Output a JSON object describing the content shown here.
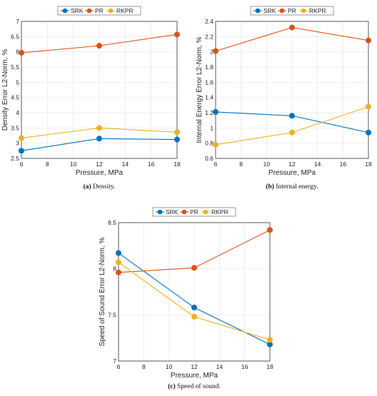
{
  "colors": {
    "SRK": "#0072BD",
    "PR": "#D95319",
    "RKPR": "#EDB120",
    "grid": "#e6e6e6",
    "axis": "#333333"
  },
  "chart_data": [
    {
      "type": "line",
      "id": "a",
      "caption_tag": "(a)",
      "caption_text": "Density.",
      "xlabel": "Pressure, MPa",
      "ylabel": "Density Error L2-Norm, %",
      "x": [
        6,
        12,
        18
      ],
      "xlim": [
        6,
        18
      ],
      "ylim": [
        2.5,
        7
      ],
      "xticks": [
        "6",
        "8",
        "10",
        "12",
        "14",
        "16",
        "18"
      ],
      "yticks": [
        "2.5",
        "3",
        "3.5",
        "4",
        "4.5",
        "5",
        "5.5",
        "6",
        "6.5",
        "7"
      ],
      "grid": true,
      "legend": "top-outside",
      "series": [
        {
          "name": "SRK",
          "values": [
            2.75,
            3.15,
            3.12
          ]
        },
        {
          "name": "PR",
          "values": [
            5.97,
            6.2,
            6.57
          ]
        },
        {
          "name": "RKPR",
          "values": [
            3.17,
            3.5,
            3.36
          ]
        }
      ]
    },
    {
      "type": "line",
      "id": "b",
      "caption_tag": "(b)",
      "caption_text": "Internal energy.",
      "xlabel": "Pressure, MPa",
      "ylabel": "Internal Energy Error L2-Norm, %",
      "x": [
        6,
        12,
        18
      ],
      "xlim": [
        6,
        18
      ],
      "ylim": [
        0.6,
        2.4
      ],
      "xticks": [
        "6",
        "8",
        "10",
        "12",
        "14",
        "16",
        "18"
      ],
      "yticks": [
        "0.6",
        "0.8",
        "1",
        "1.2",
        "1.4",
        "1.6",
        "1.8",
        "2",
        "2.2",
        "2.4"
      ],
      "grid": true,
      "legend": "top-outside",
      "series": [
        {
          "name": "SRK",
          "values": [
            1.21,
            1.16,
            0.94
          ]
        },
        {
          "name": "PR",
          "values": [
            2.01,
            2.32,
            2.15
          ]
        },
        {
          "name": "RKPR",
          "values": [
            0.78,
            0.94,
            1.28
          ]
        }
      ]
    },
    {
      "type": "line",
      "id": "c",
      "caption_tag": "(c)",
      "caption_text": "Speed of sound.",
      "xlabel": "Pressure, MPa",
      "ylabel": "Speed of Sound Error L2-Norm, %",
      "x": [
        6,
        12,
        18
      ],
      "xlim": [
        6,
        18
      ],
      "ylim": [
        7,
        8.5
      ],
      "xticks": [
        "6",
        "8",
        "10",
        "12",
        "14",
        "16",
        "18"
      ],
      "yticks": [
        "7",
        "7.5",
        "8",
        "8.5"
      ],
      "grid": true,
      "legend": "top-outside",
      "series": [
        {
          "name": "SRK",
          "values": [
            8.17,
            7.58,
            7.18
          ]
        },
        {
          "name": "PR",
          "values": [
            7.96,
            8.01,
            8.42
          ]
        },
        {
          "name": "RKPR",
          "values": [
            8.07,
            7.48,
            7.23
          ]
        }
      ]
    }
  ]
}
